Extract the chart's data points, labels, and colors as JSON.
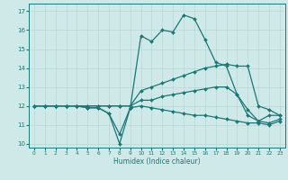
{
  "title": "",
  "xlabel": "Humidex (Indice chaleur)",
  "xlim": [
    -0.5,
    23.5
  ],
  "ylim": [
    9.8,
    17.4
  ],
  "xticks": [
    0,
    1,
    2,
    3,
    4,
    5,
    6,
    7,
    8,
    9,
    10,
    11,
    12,
    13,
    14,
    15,
    16,
    17,
    18,
    19,
    20,
    21,
    22,
    23
  ],
  "yticks": [
    10,
    11,
    12,
    13,
    14,
    15,
    16,
    17
  ],
  "bg_color": "#cfe8e8",
  "line_color": "#1a7878",
  "grid_color": "#b8d8d8",
  "lines": [
    {
      "x": [
        0,
        1,
        2,
        3,
        4,
        5,
        6,
        7,
        8,
        9,
        10,
        11,
        12,
        13,
        14,
        15,
        16,
        17,
        18,
        19,
        20,
        21,
        22,
        23
      ],
      "y": [
        12,
        12,
        12,
        12,
        12,
        11.9,
        11.9,
        11.6,
        10.5,
        11.9,
        12.0,
        11.9,
        11.8,
        11.7,
        11.6,
        11.5,
        11.5,
        11.4,
        11.3,
        11.2,
        11.1,
        11.1,
        11.0,
        11.2
      ]
    },
    {
      "x": [
        0,
        1,
        2,
        3,
        4,
        5,
        6,
        7,
        8,
        9,
        10,
        11,
        12,
        13,
        14,
        15,
        16,
        17,
        18,
        19,
        20,
        21,
        22,
        23
      ],
      "y": [
        12,
        12,
        12,
        12,
        12,
        12,
        12,
        12,
        12,
        12,
        12.3,
        12.3,
        12.5,
        12.6,
        12.7,
        12.8,
        12.9,
        13.0,
        13.0,
        12.6,
        11.5,
        11.2,
        11.1,
        11.3
      ]
    },
    {
      "x": [
        0,
        1,
        2,
        3,
        4,
        5,
        6,
        7,
        8,
        9,
        10,
        11,
        12,
        13,
        14,
        15,
        16,
        17,
        18,
        19,
        20,
        21,
        22,
        23
      ],
      "y": [
        12,
        12,
        12,
        12,
        12,
        12,
        12,
        12,
        12,
        12,
        12.8,
        13.0,
        13.2,
        13.4,
        13.6,
        13.8,
        14.0,
        14.1,
        14.2,
        14.1,
        14.1,
        12.0,
        11.8,
        11.5
      ]
    },
    {
      "x": [
        0,
        1,
        2,
        3,
        4,
        5,
        6,
        7,
        8,
        9,
        10,
        11,
        12,
        13,
        14,
        15,
        16,
        17,
        18,
        19,
        20,
        21,
        22,
        23
      ],
      "y": [
        12,
        12,
        12,
        12,
        12,
        11.9,
        11.9,
        11.6,
        10.0,
        11.9,
        15.7,
        15.4,
        16.0,
        15.9,
        16.8,
        16.6,
        15.5,
        14.3,
        14.1,
        12.6,
        11.8,
        11.2,
        11.5,
        11.5
      ]
    }
  ]
}
